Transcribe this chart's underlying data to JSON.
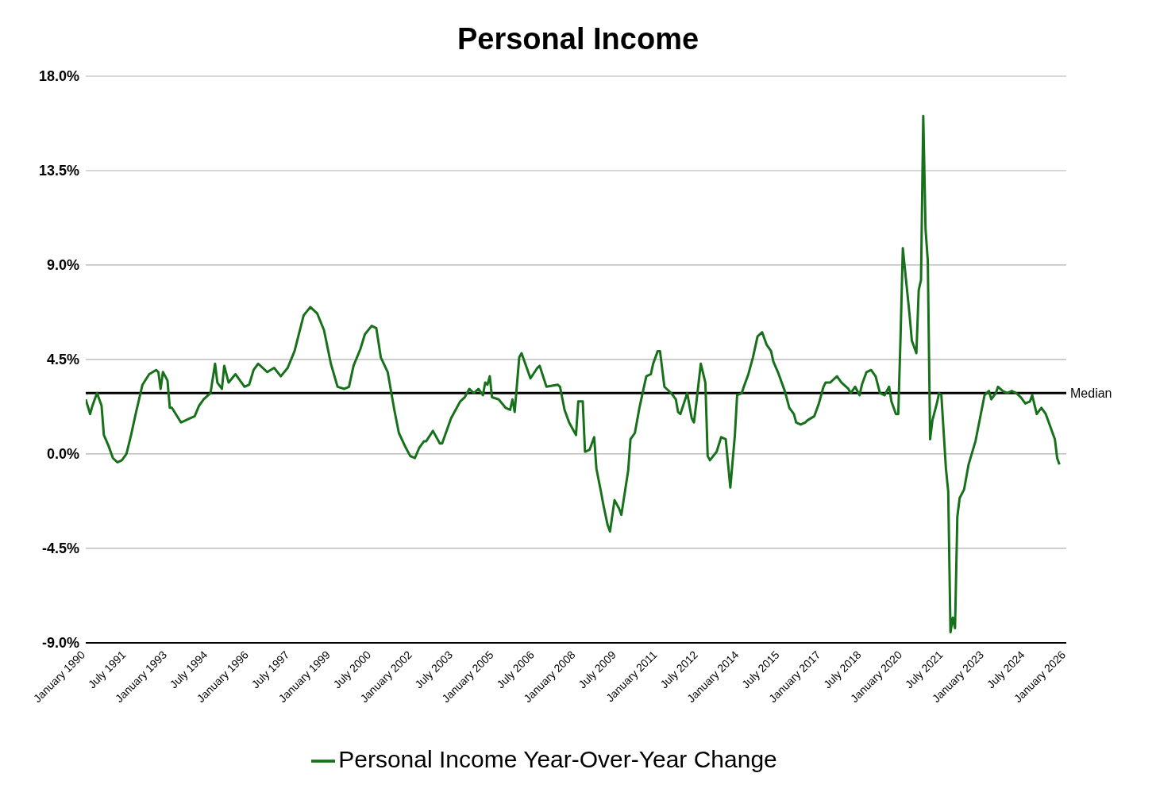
{
  "chart_data": {
    "type": "line",
    "title": "Personal Income",
    "x": [
      "1990-01",
      "1990-03",
      "1990-04",
      "1990-06",
      "1990-08",
      "1990-09",
      "1990-11",
      "1991-01",
      "1991-03",
      "1991-05",
      "1991-07",
      "1991-09",
      "1991-11",
      "1992-02",
      "1992-05",
      "1992-08",
      "1992-09",
      "1992-10",
      "1992-11",
      "1993-01",
      "1993-02",
      "1993-03",
      "1993-07",
      "1993-09",
      "1994-01",
      "1994-03",
      "1994-05",
      "1994-07",
      "1994-08",
      "1994-10",
      "1994-11",
      "1995-01",
      "1995-02",
      "1995-04",
      "1995-07",
      "1995-11",
      "1996-01",
      "1996-03",
      "1996-05",
      "1996-09",
      "1996-12",
      "1997-03",
      "1997-06",
      "1997-09",
      "1998-01",
      "1998-04",
      "1998-07",
      "1998-10",
      "1999-01",
      "1999-04",
      "1999-07",
      "1999-09",
      "1999-11",
      "2000-02",
      "2000-04",
      "2000-07",
      "2000-09",
      "2000-11",
      "2001-02",
      "2001-05",
      "2001-07",
      "2001-10",
      "2001-12",
      "2002-02",
      "2002-04",
      "2002-06",
      "2002-07",
      "2002-10",
      "2003-01",
      "2003-02",
      "2003-06",
      "2003-10",
      "2003-12",
      "2004-02",
      "2004-04",
      "2004-06",
      "2004-08",
      "2004-09",
      "2004-10",
      "2004-11",
      "2004-12",
      "2005-03",
      "2005-06",
      "2005-08",
      "2005-09",
      "2005-10",
      "2005-12",
      "2006-01",
      "2006-05",
      "2006-08",
      "2006-09",
      "2006-12",
      "2007-05",
      "2007-06",
      "2007-08",
      "2007-10",
      "2008-01",
      "2008-02",
      "2008-04",
      "2008-05",
      "2008-07",
      "2008-09",
      "2008-10",
      "2008-12",
      "2009-01",
      "2009-03",
      "2009-04",
      "2009-06",
      "2009-08",
      "2009-09",
      "2009-10",
      "2009-12",
      "2010-01",
      "2010-03",
      "2010-05",
      "2010-07",
      "2010-08",
      "2010-10",
      "2010-11",
      "2011-01",
      "2011-02",
      "2011-04",
      "2011-05",
      "2011-07",
      "2011-09",
      "2011-10",
      "2011-11",
      "2012-02",
      "2012-04",
      "2012-05",
      "2012-06",
      "2012-08",
      "2012-10",
      "2012-11",
      "2012-12",
      "2013-03",
      "2013-05",
      "2013-07",
      "2013-09",
      "2013-11",
      "2013-12",
      "2014-02",
      "2014-03",
      "2014-05",
      "2014-07",
      "2014-09",
      "2014-11",
      "2015-01",
      "2015-03",
      "2015-04",
      "2015-06",
      "2015-09",
      "2015-11",
      "2016-01",
      "2016-02",
      "2016-04",
      "2016-06",
      "2016-07",
      "2016-10",
      "2016-12",
      "2017-02",
      "2017-03",
      "2017-05",
      "2017-07",
      "2017-08",
      "2017-10",
      "2018-01",
      "2018-02",
      "2018-04",
      "2018-06",
      "2018-07",
      "2018-09",
      "2018-11",
      "2019-01",
      "2019-03",
      "2019-05",
      "2019-07",
      "2019-08",
      "2019-10",
      "2019-11",
      "2019-12",
      "2020-01",
      "2020-03",
      "2020-04",
      "2020-05",
      "2020-07",
      "2020-08",
      "2020-09",
      "2020-10",
      "2020-11",
      "2020-12",
      "2021-01",
      "2021-02",
      "2021-04",
      "2021-05",
      "2021-06",
      "2021-08",
      "2021-09",
      "2021-10",
      "2021-11",
      "2021-12",
      "2022-01",
      "2022-02",
      "2022-04",
      "2022-06",
      "2022-09",
      "2022-11",
      "2023-01",
      "2023-03",
      "2023-04",
      "2023-06",
      "2023-07",
      "2023-09",
      "2023-11",
      "2024-01",
      "2024-03",
      "2024-05",
      "2024-07",
      "2024-09",
      "2024-10",
      "2024-12",
      "2025-02",
      "2025-04",
      "2025-06",
      "2025-08",
      "2025-09",
      "2025-10"
    ],
    "series": [
      {
        "name": "Personal Income Year-Over-Year Change",
        "color": "#17701a",
        "values": [
          2.6,
          1.9,
          2.3,
          2.9,
          2.3,
          0.9,
          0.4,
          -0.2,
          -0.4,
          -0.3,
          0.0,
          0.9,
          1.9,
          3.3,
          3.8,
          4.0,
          3.9,
          3.1,
          3.9,
          3.5,
          2.2,
          2.2,
          1.5,
          1.6,
          1.8,
          2.3,
          2.6,
          2.8,
          2.9,
          4.3,
          3.4,
          3.1,
          4.2,
          3.4,
          3.8,
          3.2,
          3.3,
          4.0,
          4.3,
          3.9,
          4.1,
          3.7,
          4.1,
          4.9,
          6.6,
          7.0,
          6.7,
          5.9,
          4.3,
          3.2,
          3.1,
          3.2,
          4.2,
          5.0,
          5.7,
          6.1,
          6.0,
          4.6,
          3.9,
          2.1,
          1.0,
          0.3,
          -0.1,
          -0.2,
          0.3,
          0.6,
          0.6,
          1.1,
          0.5,
          0.5,
          1.7,
          2.5,
          2.7,
          3.1,
          2.9,
          3.1,
          2.8,
          3.4,
          3.3,
          3.7,
          2.7,
          2.6,
          2.2,
          2.1,
          2.6,
          2.0,
          4.6,
          4.8,
          3.6,
          4.1,
          4.2,
          3.2,
          3.3,
          3.2,
          2.1,
          1.5,
          0.9,
          2.5,
          2.5,
          0.1,
          0.2,
          0.8,
          -0.7,
          -1.8,
          -2.4,
          -3.4,
          -3.7,
          -2.2,
          -2.6,
          -2.9,
          -2.2,
          -0.8,
          0.7,
          1.0,
          2.2,
          3.2,
          3.7,
          3.8,
          4.3,
          4.9,
          4.9,
          3.2,
          3.1,
          2.9,
          2.6,
          2.0,
          1.9,
          2.9,
          1.7,
          1.5,
          2.4,
          4.3,
          3.4,
          -0.1,
          -0.3,
          0.1,
          0.8,
          0.7,
          -1.6,
          0.9,
          2.8,
          2.9,
          3.2,
          3.8,
          4.6,
          5.6,
          5.8,
          5.2,
          4.9,
          4.4,
          3.9,
          3.0,
          2.2,
          1.9,
          1.5,
          1.4,
          1.5,
          1.6,
          1.8,
          2.4,
          3.2,
          3.4,
          3.4,
          3.6,
          3.7,
          3.4,
          3.1,
          2.9,
          3.2,
          2.8,
          3.3,
          3.9,
          4.0,
          3.7,
          2.9,
          2.8,
          3.2,
          2.5,
          1.9,
          1.9,
          5.5,
          9.8,
          7.7,
          6.6,
          5.4,
          4.8,
          7.8,
          8.3,
          16.1,
          10.7,
          9.2,
          0.7,
          1.6,
          2.4,
          2.9,
          2.8,
          -0.7,
          -1.8,
          -8.5,
          -7.8,
          -8.3,
          -3.0,
          -2.1,
          -1.7,
          -0.5,
          0.6,
          1.7,
          2.8,
          3.0,
          2.6,
          2.9,
          3.2,
          3.0,
          2.9,
          3.0,
          2.9,
          2.7,
          2.4,
          2.5,
          2.8,
          1.9,
          2.2,
          1.9,
          1.3,
          0.7,
          -0.2,
          -0.5
        ]
      }
    ],
    "xlim": [
      "1990-01",
      "2026-01"
    ],
    "xticks": [
      {
        "value": "1990-01",
        "label": "January 1990"
      },
      {
        "value": "1991-07",
        "label": "July 1991"
      },
      {
        "value": "1993-01",
        "label": "January 1993"
      },
      {
        "value": "1994-07",
        "label": "July 1994"
      },
      {
        "value": "1996-01",
        "label": "January 1996"
      },
      {
        "value": "1997-07",
        "label": "July 1997"
      },
      {
        "value": "1999-01",
        "label": "January 1999"
      },
      {
        "value": "2000-07",
        "label": "July 2000"
      },
      {
        "value": "2002-01",
        "label": "January 2002"
      },
      {
        "value": "2003-07",
        "label": "July 2003"
      },
      {
        "value": "2005-01",
        "label": "January 2005"
      },
      {
        "value": "2006-07",
        "label": "July 2006"
      },
      {
        "value": "2008-01",
        "label": "January 2008"
      },
      {
        "value": "2009-07",
        "label": "July 2009"
      },
      {
        "value": "2011-01",
        "label": "January 2011"
      },
      {
        "value": "2012-07",
        "label": "July 2012"
      },
      {
        "value": "2014-01",
        "label": "January 2014"
      },
      {
        "value": "2015-07",
        "label": "July 2015"
      },
      {
        "value": "2017-01",
        "label": "January 2017"
      },
      {
        "value": "2018-07",
        "label": "July 2018"
      },
      {
        "value": "2020-01",
        "label": "January 2020"
      },
      {
        "value": "2021-07",
        "label": "July 2021"
      },
      {
        "value": "2023-01",
        "label": "January 2023"
      },
      {
        "value": "2024-07",
        "label": "July 2024"
      },
      {
        "value": "2026-01",
        "label": "January 2026"
      }
    ],
    "ylim": [
      -9,
      18
    ],
    "yticks": [
      {
        "value": -9,
        "label": "-9.0%"
      },
      {
        "value": -4.5,
        "label": "-4.5%"
      },
      {
        "value": 0,
        "label": "0.0%"
      },
      {
        "value": 4.5,
        "label": "4.5%"
      },
      {
        "value": 9,
        "label": "9.0%"
      },
      {
        "value": 13.5,
        "label": "13.5%"
      },
      {
        "value": 18,
        "label": "18.0%"
      }
    ],
    "ref_lines": [
      {
        "axis": "y",
        "value": 2.9,
        "label": "Median",
        "color": "#000000"
      }
    ],
    "grid": "y",
    "legend": "bottom",
    "marker": "none",
    "line_style": "solid"
  }
}
